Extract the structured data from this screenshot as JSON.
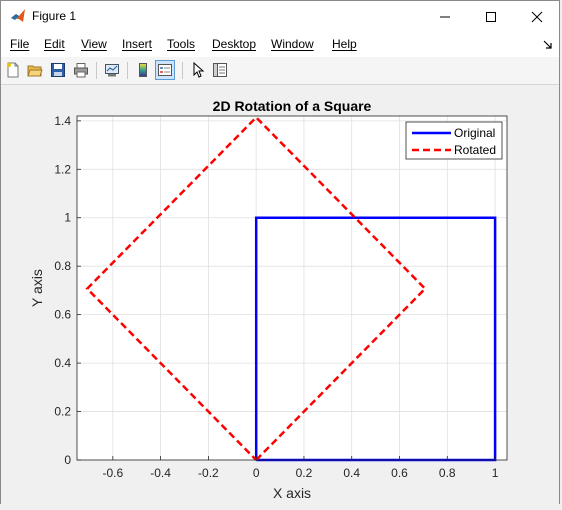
{
  "window": {
    "title": "Figure 1",
    "controls": [
      "minimize",
      "maximize",
      "close"
    ]
  },
  "menubar": {
    "items": [
      {
        "label": "File",
        "name": "menu-file"
      },
      {
        "label": "Edit",
        "name": "menu-edit"
      },
      {
        "label": "View",
        "name": "menu-view"
      },
      {
        "label": "Insert",
        "name": "menu-insert"
      },
      {
        "label": "Tools",
        "name": "menu-tools"
      },
      {
        "label": "Desktop",
        "name": "menu-desktop"
      },
      {
        "label": "Window",
        "name": "menu-window"
      },
      {
        "label": "Help",
        "name": "menu-help"
      }
    ]
  },
  "toolbar": {
    "buttons": [
      "new-figure-icon",
      "open-file-icon",
      "save-icon",
      "print-icon",
      "link-plot-icon",
      "insert-colorbar-icon",
      "insert-legend-icon",
      "edit-plot-icon",
      "property-inspector-icon"
    ]
  },
  "colors": {
    "original": "#0000ff",
    "rotated": "#ff0000",
    "grid": "#e0e0e0",
    "axes": "#262626"
  },
  "chart_data": {
    "type": "line",
    "title": "2D Rotation of a Square",
    "xlabel": "X axis",
    "ylabel": "Y axis",
    "xlim": [
      -0.75,
      1.05
    ],
    "ylim": [
      0,
      1.42
    ],
    "xticks": [
      -0.6,
      -0.4,
      -0.2,
      0,
      0.2,
      0.4,
      0.6,
      0.8,
      1
    ],
    "xtick_labels": [
      "-0.6",
      "-0.4",
      "-0.2",
      "0",
      "0.2",
      "0.4",
      "0.6",
      "0.8",
      "1"
    ],
    "yticks": [
      0,
      0.2,
      0.4,
      0.6,
      0.8,
      1,
      1.2,
      1.4
    ],
    "ytick_labels": [
      "0",
      "0.2",
      "0.4",
      "0.6",
      "0.8",
      "1",
      "1.2",
      "1.4"
    ],
    "grid": true,
    "legend_position": "top-right",
    "series": [
      {
        "name": "Original",
        "style": "solid",
        "x": [
          0,
          1,
          1,
          0,
          0
        ],
        "y": [
          0,
          0,
          1,
          1,
          0
        ]
      },
      {
        "name": "Rotated",
        "style": "dashed",
        "x": [
          0,
          0.7071,
          0,
          -0.7071,
          0
        ],
        "y": [
          0,
          0.7071,
          1.4142,
          0.7071,
          0
        ]
      }
    ]
  }
}
